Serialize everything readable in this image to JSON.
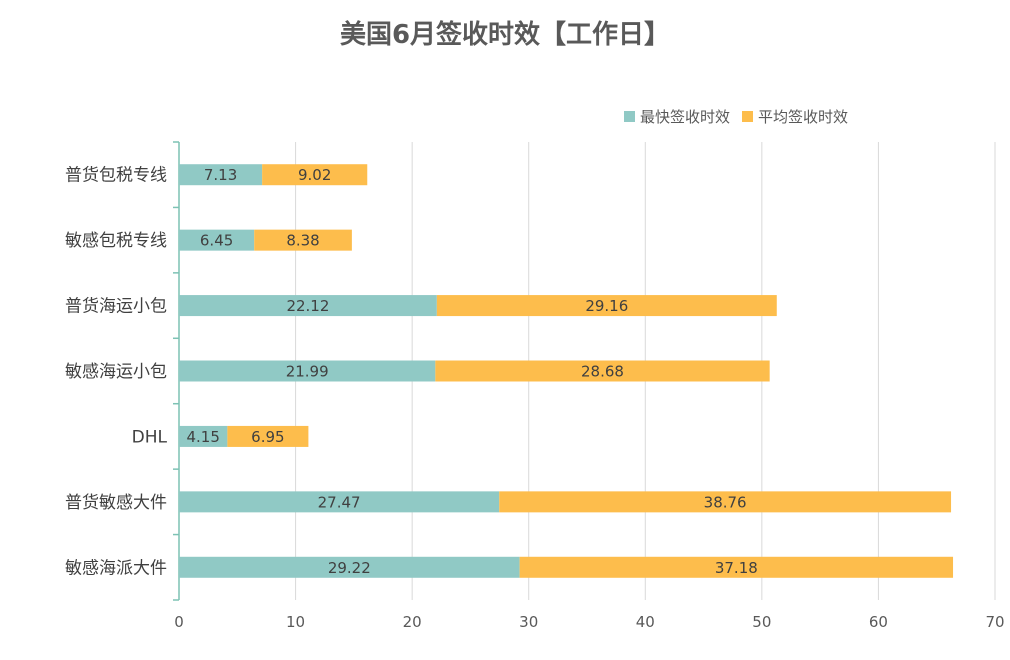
{
  "chart_data": {
    "type": "bar",
    "orientation": "horizontal",
    "stacked": true,
    "title": "美国6月签收时效【工作日】",
    "categories": [
      "普货包税专线",
      "敏感包税专线",
      "普货海运小包",
      "敏感海运小包",
      "DHL",
      "普货敏感大件",
      "敏感海派大件"
    ],
    "series": [
      {
        "name": "最快签收时效",
        "color": "#90C9C5",
        "values": [
          7.13,
          6.45,
          22.12,
          21.99,
          4.15,
          27.47,
          29.22
        ]
      },
      {
        "name": "平均签收时效",
        "color": "#FDBD4C",
        "values": [
          9.02,
          8.38,
          29.16,
          28.68,
          6.95,
          38.76,
          37.18
        ]
      }
    ],
    "xlim": [
      0,
      70
    ],
    "xticks": [
      0,
      10,
      20,
      30,
      40,
      50,
      60,
      70
    ],
    "grid": true,
    "legend_position": "top-right",
    "axis_color": "#7DC2B4",
    "grid_color": "#D9D9D9"
  }
}
